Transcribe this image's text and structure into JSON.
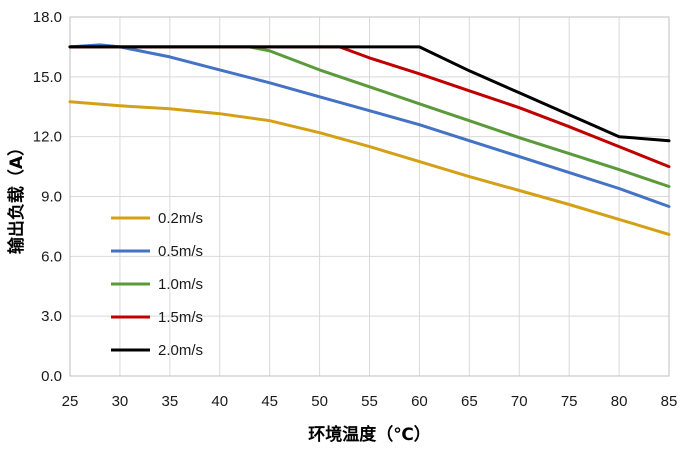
{
  "chart_data": {
    "type": "line",
    "title": "",
    "xlabel": "环境温度（℃）",
    "ylabel": "输出负载（A）",
    "xlim": [
      25,
      85
    ],
    "ylim": [
      0,
      18
    ],
    "xticks": [
      25,
      30,
      35,
      40,
      45,
      50,
      55,
      60,
      65,
      70,
      75,
      80,
      85
    ],
    "yticks": [
      "0.0",
      "3.0",
      "6.0",
      "9.0",
      "12.0",
      "15.0",
      "18.0"
    ],
    "grid": true,
    "legend_position": "lower-left",
    "series": [
      {
        "name": "0.2m/s",
        "color": "#d4a017",
        "points": [
          [
            25,
            13.75
          ],
          [
            30,
            13.55
          ],
          [
            35,
            13.4
          ],
          [
            40,
            13.15
          ],
          [
            45,
            12.8
          ],
          [
            50,
            12.2
          ],
          [
            55,
            11.5
          ],
          [
            60,
            10.75
          ],
          [
            65,
            10.0
          ],
          [
            70,
            9.3
          ],
          [
            75,
            8.6
          ],
          [
            80,
            7.85
          ],
          [
            85,
            7.1
          ]
        ]
      },
      {
        "name": "0.5m/s",
        "color": "#4472c4",
        "points": [
          [
            25,
            16.5
          ],
          [
            28,
            16.6
          ],
          [
            30,
            16.5
          ],
          [
            35,
            16.0
          ],
          [
            40,
            15.35
          ],
          [
            45,
            14.7
          ],
          [
            50,
            14.0
          ],
          [
            55,
            13.3
          ],
          [
            60,
            12.6
          ],
          [
            65,
            11.8
          ],
          [
            70,
            11.0
          ],
          [
            75,
            10.2
          ],
          [
            80,
            9.4
          ],
          [
            85,
            8.5
          ]
        ]
      },
      {
        "name": "1.0m/s",
        "color": "#5b9a3c",
        "points": [
          [
            25,
            16.5
          ],
          [
            43,
            16.5
          ],
          [
            45,
            16.3
          ],
          [
            50,
            15.35
          ],
          [
            55,
            14.5
          ],
          [
            60,
            13.65
          ],
          [
            65,
            12.8
          ],
          [
            70,
            11.95
          ],
          [
            75,
            11.15
          ],
          [
            80,
            10.35
          ],
          [
            85,
            9.5
          ]
        ]
      },
      {
        "name": "1.5m/s",
        "color": "#c00000",
        "points": [
          [
            25,
            16.5
          ],
          [
            52,
            16.5
          ],
          [
            55,
            15.95
          ],
          [
            60,
            15.15
          ],
          [
            65,
            14.3
          ],
          [
            70,
            13.45
          ],
          [
            75,
            12.5
          ],
          [
            80,
            11.5
          ],
          [
            85,
            10.5
          ]
        ]
      },
      {
        "name": "2.0m/s",
        "color": "#000000",
        "points": [
          [
            25,
            16.5
          ],
          [
            60,
            16.5
          ],
          [
            65,
            15.3
          ],
          [
            70,
            14.2
          ],
          [
            75,
            13.1
          ],
          [
            80,
            12.0
          ],
          [
            85,
            11.8
          ]
        ]
      }
    ]
  }
}
